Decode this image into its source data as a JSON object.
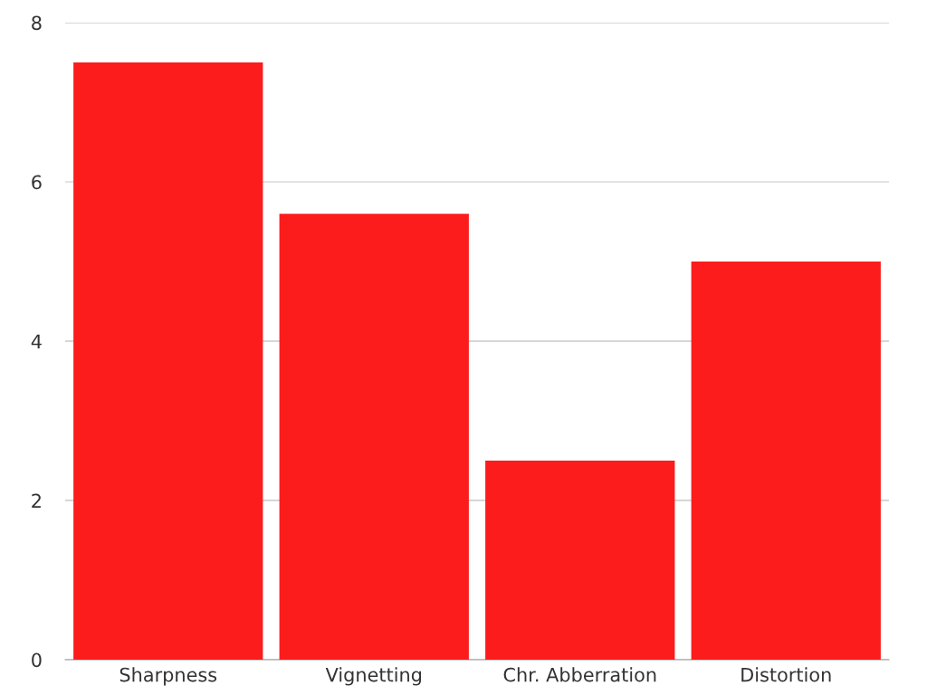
{
  "chart_data": {
    "type": "bar",
    "categories": [
      "Sharpness",
      "Vignetting",
      "Chr. Abberration",
      "Distortion"
    ],
    "values": [
      7.5,
      5.6,
      2.5,
      5.0
    ],
    "color": "#fc1c1c",
    "ylim": [
      0,
      8
    ],
    "yticks": [
      0,
      2,
      4,
      6,
      8
    ],
    "grid": "y",
    "legend": false
  }
}
